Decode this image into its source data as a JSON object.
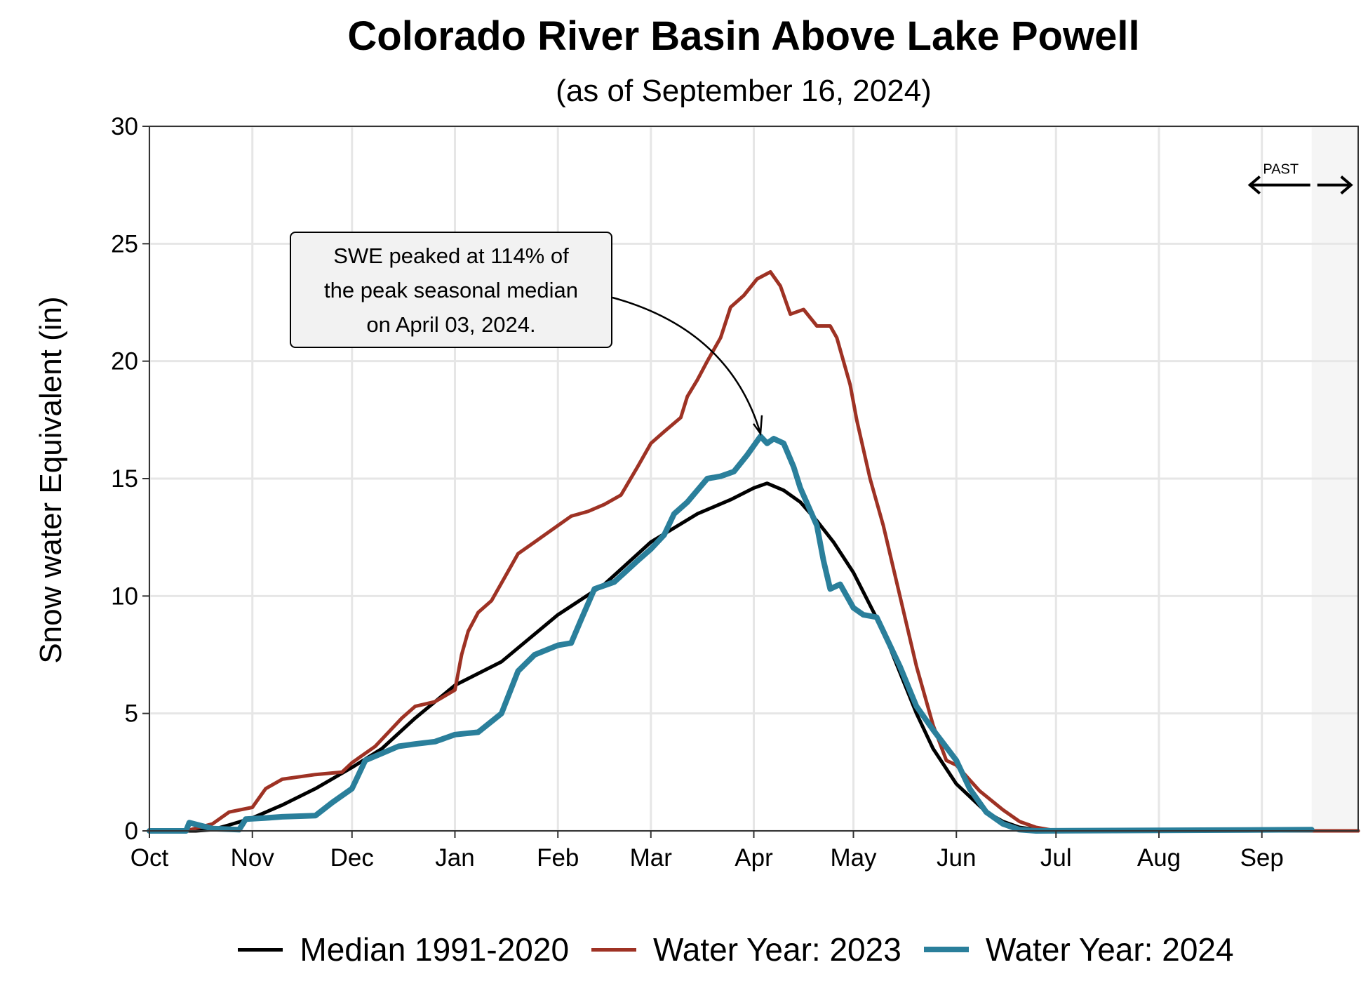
{
  "chart_data": {
    "type": "line",
    "title": "Colorado River Basin Above Lake Powell",
    "subtitle": "(as of September 16, 2024)",
    "ylabel": "Snow water Equivalent (in)",
    "xlabel": "",
    "ylim": [
      0,
      30
    ],
    "yticks": [
      "0",
      "5",
      "10",
      "15",
      "20",
      "25",
      "30"
    ],
    "xlim": [
      "Oct 01",
      "Sep 30"
    ],
    "xticks": [
      {
        "label": "Oct",
        "date": "Oct 01"
      },
      {
        "label": "Nov",
        "date": "Nov 01"
      },
      {
        "label": "Dec",
        "date": "Dec 01"
      },
      {
        "label": "Jan",
        "date": "Jan 01"
      },
      {
        "label": "Feb",
        "date": "Feb 01"
      },
      {
        "label": "Mar",
        "date": "Mar 01"
      },
      {
        "label": "Apr",
        "date": "Apr 01"
      },
      {
        "label": "May",
        "date": "May 01"
      },
      {
        "label": "Jun",
        "date": "Jun 01"
      },
      {
        "label": "Jul",
        "date": "Jul 01"
      },
      {
        "label": "Aug",
        "date": "Aug 01"
      },
      {
        "label": "Sep",
        "date": "Sep 01"
      }
    ],
    "grid": true,
    "legend_position": "bottom",
    "shaded_region": {
      "from": "Sep 16",
      "to": "Sep 30",
      "color": "#f5f5f5"
    },
    "past_indicator": {
      "label": "PAST",
      "at": "Sep 16",
      "y": 27.5
    },
    "annotation": {
      "lines": [
        "SWE peaked at 114% of",
        "the peak seasonal median",
        "on April 03, 2024."
      ],
      "arrow_to": {
        "date": "Apr 03",
        "y": 16.8
      }
    },
    "series": [
      {
        "name": "Median 1991-2020",
        "color": "#000000",
        "width": 5,
        "points": [
          [
            "Oct 01",
            0
          ],
          [
            "Oct 15",
            0
          ],
          [
            "Oct 20",
            0.05
          ],
          [
            "Oct 25",
            0.25
          ],
          [
            "Nov 01",
            0.55
          ],
          [
            "Nov 10",
            1.1
          ],
          [
            "Nov 20",
            1.8
          ],
          [
            "Dec 01",
            2.7
          ],
          [
            "Dec 10",
            3.5
          ],
          [
            "Dec 20",
            4.8
          ],
          [
            "Jan 01",
            6.2
          ],
          [
            "Jan 15",
            7.2
          ],
          [
            "Feb 01",
            9.2
          ],
          [
            "Feb 15",
            10.5
          ],
          [
            "Mar 01",
            12.3
          ],
          [
            "Mar 15",
            13.5
          ],
          [
            "Mar 25",
            14.1
          ],
          [
            "Apr 01",
            14.6
          ],
          [
            "Apr 05",
            14.8
          ],
          [
            "Apr 10",
            14.5
          ],
          [
            "Apr 15",
            14.0
          ],
          [
            "Apr 20",
            13.2
          ],
          [
            "Apr 25",
            12.3
          ],
          [
            "May 01",
            11.0
          ],
          [
            "May 10",
            8.5
          ],
          [
            "May 20",
            5.0
          ],
          [
            "May 25",
            3.5
          ],
          [
            "Jun 01",
            2.0
          ],
          [
            "Jun 10",
            0.8
          ],
          [
            "Jun 15",
            0.4
          ],
          [
            "Jun 20",
            0.15
          ],
          [
            "Jun 25",
            0.05
          ],
          [
            "Jul 01",
            0
          ],
          [
            "Sep 30",
            0
          ]
        ]
      },
      {
        "name": "Water Year: 2023",
        "color": "#9e3224",
        "width": 5,
        "points": [
          [
            "Oct 01",
            0
          ],
          [
            "Oct 12",
            0
          ],
          [
            "Oct 20",
            0.3
          ],
          [
            "Oct 25",
            0.8
          ],
          [
            "Nov 01",
            1.0
          ],
          [
            "Nov 05",
            1.8
          ],
          [
            "Nov 10",
            2.2
          ],
          [
            "Nov 20",
            2.4
          ],
          [
            "Nov 28",
            2.5
          ],
          [
            "Dec 01",
            2.9
          ],
          [
            "Dec 08",
            3.6
          ],
          [
            "Dec 12",
            4.2
          ],
          [
            "Dec 16",
            4.8
          ],
          [
            "Dec 20",
            5.3
          ],
          [
            "Dec 26",
            5.5
          ],
          [
            "Jan 01",
            6.0
          ],
          [
            "Jan 03",
            7.5
          ],
          [
            "Jan 05",
            8.5
          ],
          [
            "Jan 08",
            9.3
          ],
          [
            "Jan 12",
            9.8
          ],
          [
            "Jan 16",
            10.8
          ],
          [
            "Jan 20",
            11.8
          ],
          [
            "Jan 25",
            12.3
          ],
          [
            "Feb 01",
            13.0
          ],
          [
            "Feb 05",
            13.4
          ],
          [
            "Feb 10",
            13.6
          ],
          [
            "Feb 15",
            13.9
          ],
          [
            "Feb 20",
            14.3
          ],
          [
            "Feb 25",
            15.5
          ],
          [
            "Mar 01",
            16.5
          ],
          [
            "Mar 05",
            17.0
          ],
          [
            "Mar 10",
            17.6
          ],
          [
            "Mar 12",
            18.5
          ],
          [
            "Mar 15",
            19.2
          ],
          [
            "Mar 18",
            20.0
          ],
          [
            "Mar 22",
            21.0
          ],
          [
            "Mar 25",
            22.3
          ],
          [
            "Mar 29",
            22.8
          ],
          [
            "Apr 02",
            23.5
          ],
          [
            "Apr 06",
            23.8
          ],
          [
            "Apr 09",
            23.2
          ],
          [
            "Apr 12",
            22.0
          ],
          [
            "Apr 16",
            22.2
          ],
          [
            "Apr 20",
            21.5
          ],
          [
            "Apr 24",
            21.5
          ],
          [
            "Apr 26",
            21.0
          ],
          [
            "Apr 30",
            19.0
          ],
          [
            "May 02",
            17.5
          ],
          [
            "May 06",
            15.0
          ],
          [
            "May 10",
            13.0
          ],
          [
            "May 15",
            10.0
          ],
          [
            "May 20",
            7.0
          ],
          [
            "May 25",
            4.5
          ],
          [
            "May 29",
            3.0
          ],
          [
            "Jun 01",
            2.8
          ],
          [
            "Jun 08",
            1.7
          ],
          [
            "Jun 15",
            0.9
          ],
          [
            "Jun 20",
            0.4
          ],
          [
            "Jun 25",
            0.15
          ],
          [
            "Jul 01",
            0
          ],
          [
            "Sep 30",
            0
          ]
        ]
      },
      {
        "name": "Water Year: 2024",
        "color": "#2a7f9b",
        "width": 8,
        "points": [
          [
            "Oct 01",
            0
          ],
          [
            "Oct 12",
            0
          ],
          [
            "Oct 13",
            0.35
          ],
          [
            "Oct 20",
            0.1
          ],
          [
            "Oct 28",
            0.05
          ],
          [
            "Oct 30",
            0.5
          ],
          [
            "Nov 05",
            0.55
          ],
          [
            "Nov 10",
            0.6
          ],
          [
            "Nov 20",
            0.65
          ],
          [
            "Nov 25",
            1.2
          ],
          [
            "Dec 01",
            1.8
          ],
          [
            "Dec 05",
            3.0
          ],
          [
            "Dec 10",
            3.3
          ],
          [
            "Dec 15",
            3.6
          ],
          [
            "Dec 20",
            3.7
          ],
          [
            "Dec 26",
            3.8
          ],
          [
            "Jan 01",
            4.1
          ],
          [
            "Jan 08",
            4.2
          ],
          [
            "Jan 15",
            5.0
          ],
          [
            "Jan 20",
            6.8
          ],
          [
            "Jan 25",
            7.5
          ],
          [
            "Feb 01",
            7.9
          ],
          [
            "Feb 05",
            8.0
          ],
          [
            "Feb 08",
            9.0
          ],
          [
            "Feb 12",
            10.3
          ],
          [
            "Feb 18",
            10.6
          ],
          [
            "Feb 25",
            11.5
          ],
          [
            "Mar 01",
            12.0
          ],
          [
            "Mar 05",
            12.6
          ],
          [
            "Mar 08",
            13.5
          ],
          [
            "Mar 12",
            14.0
          ],
          [
            "Mar 15",
            14.5
          ],
          [
            "Mar 18",
            15.0
          ],
          [
            "Mar 22",
            15.1
          ],
          [
            "Mar 26",
            15.3
          ],
          [
            "Mar 30",
            16.0
          ],
          [
            "Apr 03",
            16.8
          ],
          [
            "Apr 05",
            16.5
          ],
          [
            "Apr 07",
            16.7
          ],
          [
            "Apr 10",
            16.5
          ],
          [
            "Apr 13",
            15.5
          ],
          [
            "Apr 15",
            14.6
          ],
          [
            "Apr 20",
            13.0
          ],
          [
            "Apr 22",
            11.5
          ],
          [
            "Apr 24",
            10.3
          ],
          [
            "Apr 27",
            10.5
          ],
          [
            "May 01",
            9.5
          ],
          [
            "May 04",
            9.2
          ],
          [
            "May 08",
            9.1
          ],
          [
            "May 10",
            8.5
          ],
          [
            "May 15",
            7.0
          ],
          [
            "May 20",
            5.3
          ],
          [
            "May 25",
            4.3
          ],
          [
            "Jun 01",
            3.0
          ],
          [
            "Jun 05",
            1.8
          ],
          [
            "Jun 10",
            0.8
          ],
          [
            "Jun 15",
            0.3
          ],
          [
            "Jun 20",
            0.05
          ],
          [
            "Jun 25",
            0
          ],
          [
            "Sep 16",
            0.05
          ]
        ]
      }
    ]
  }
}
